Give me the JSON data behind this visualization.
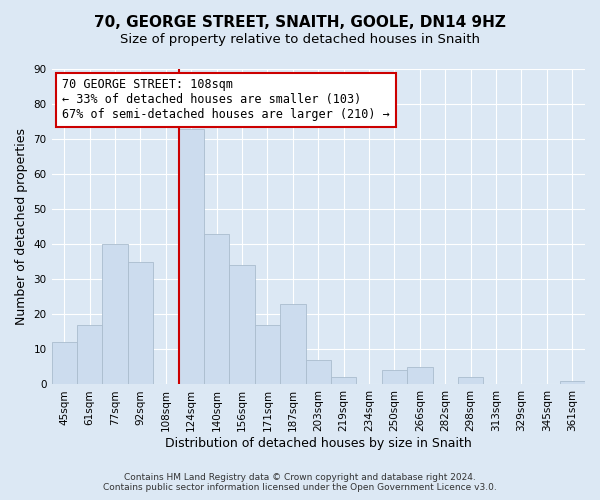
{
  "title": "70, GEORGE STREET, SNAITH, GOOLE, DN14 9HZ",
  "subtitle": "Size of property relative to detached houses in Snaith",
  "xlabel": "Distribution of detached houses by size in Snaith",
  "ylabel": "Number of detached properties",
  "bar_labels": [
    "45sqm",
    "61sqm",
    "77sqm",
    "92sqm",
    "108sqm",
    "124sqm",
    "140sqm",
    "156sqm",
    "171sqm",
    "187sqm",
    "203sqm",
    "219sqm",
    "234sqm",
    "250sqm",
    "266sqm",
    "282sqm",
    "298sqm",
    "313sqm",
    "329sqm",
    "345sqm",
    "361sqm"
  ],
  "bar_values": [
    12,
    17,
    40,
    35,
    0,
    73,
    43,
    34,
    17,
    23,
    7,
    2,
    0,
    4,
    5,
    0,
    2,
    0,
    0,
    0,
    1
  ],
  "bar_color": "#ccdcee",
  "bar_edge_color": "#aabcce",
  "vline_x_index": 4,
  "vline_color": "#cc0000",
  "annotation_text": "70 GEORGE STREET: 108sqm\n← 33% of detached houses are smaller (103)\n67% of semi-detached houses are larger (210) →",
  "annotation_box_color": "#ffffff",
  "annotation_box_edge": "#cc0000",
  "ylim": [
    0,
    90
  ],
  "yticks": [
    0,
    10,
    20,
    30,
    40,
    50,
    60,
    70,
    80,
    90
  ],
  "background_color": "#dce8f4",
  "plot_bg_color": "#dce8f4",
  "footer_line1": "Contains HM Land Registry data © Crown copyright and database right 2024.",
  "footer_line2": "Contains public sector information licensed under the Open Government Licence v3.0.",
  "title_fontsize": 11,
  "subtitle_fontsize": 9.5,
  "axis_label_fontsize": 9,
  "tick_fontsize": 7.5,
  "annotation_fontsize": 8.5,
  "footer_fontsize": 6.5
}
